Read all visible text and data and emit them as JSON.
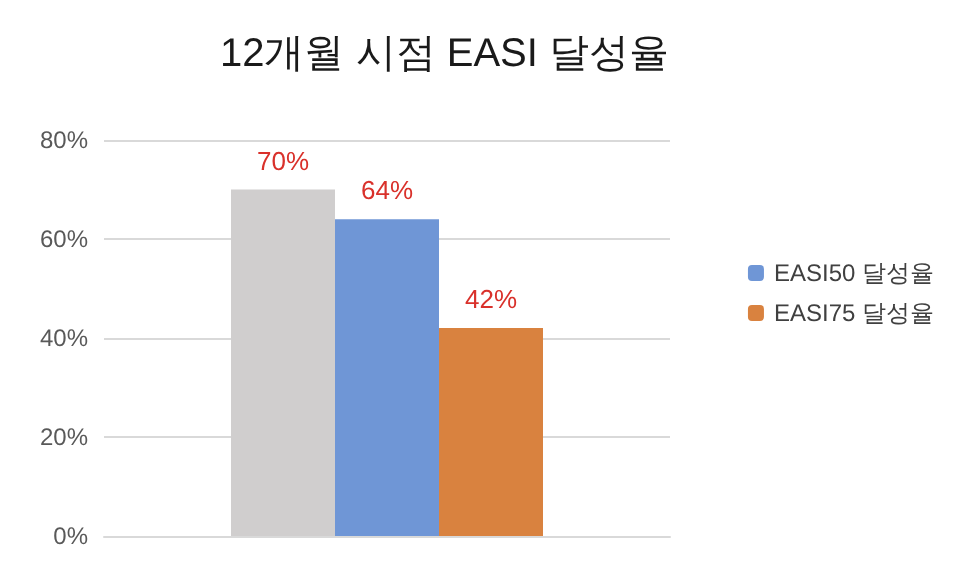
{
  "chart_data": {
    "type": "bar",
    "title": "12개월 시점 EASI 달성율",
    "categories": [
      null
    ],
    "series": [
      {
        "color": "#d0cece",
        "values": [
          70
        ],
        "value_labels": [
          "70%"
        ]
      },
      {
        "name": "EASI50 달성율",
        "color": "#6f96d6",
        "values": [
          64
        ],
        "value_labels": [
          "64%"
        ]
      },
      {
        "name": "EASI75 달성율",
        "color": "#d9823f",
        "values": [
          42
        ],
        "value_labels": [
          "42%"
        ]
      }
    ],
    "ylim": [
      0,
      80
    ],
    "yticks": [
      {
        "value": 0,
        "label": "0%"
      },
      {
        "value": 20,
        "label": "20%"
      },
      {
        "value": 40,
        "label": "40%"
      },
      {
        "value": 60,
        "label": "60%"
      },
      {
        "value": 80,
        "label": "80%"
      }
    ],
    "grid": true,
    "legend": "right"
  }
}
